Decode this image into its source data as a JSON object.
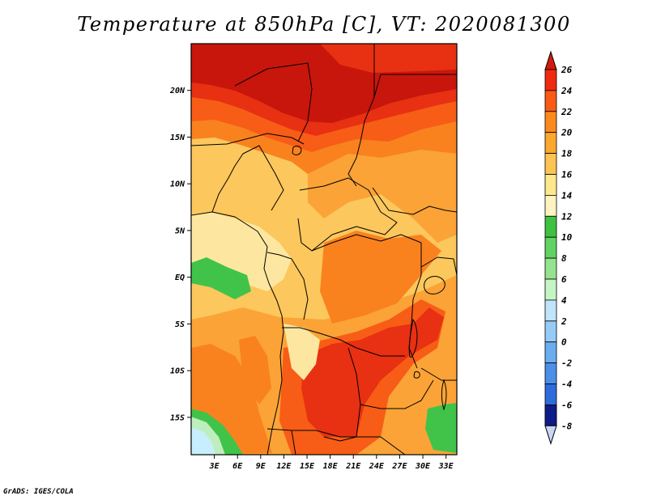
{
  "title": "Temperature at 850hPa [C], VT: 2020081300",
  "credit": "GrADS: IGES/COLA",
  "map": {
    "lat_labels": [
      "20N",
      "15N",
      "10N",
      "5N",
      "EQ",
      "5S",
      "10S",
      "15S"
    ],
    "lon_labels": [
      "3E",
      "6E",
      "9E",
      "12E",
      "15E",
      "18E",
      "21E",
      "24E",
      "27E",
      "30E",
      "33E"
    ],
    "lat_values": [
      20,
      15,
      10,
      5,
      0,
      -5,
      -10,
      -15
    ],
    "lon_values": [
      3,
      6,
      9,
      12,
      15,
      18,
      21,
      24,
      27,
      30,
      33
    ],
    "lat_range": [
      -19,
      25
    ],
    "lon_range": [
      0,
      34.4
    ]
  },
  "colorbar": {
    "levels": [
      "26",
      "24",
      "22",
      "20",
      "18",
      "16",
      "14",
      "12",
      "10",
      "8",
      "6",
      "4",
      "2",
      "0",
      "-2",
      "-4",
      "-6",
      "-8"
    ],
    "colors": [
      "#ef2a10",
      "#f95a14",
      "#fb8a1e",
      "#fba82e",
      "#fcc452",
      "#fde88c",
      "#fff3c0",
      "#3fc242",
      "#62d362",
      "#96e38f",
      "#c6f5c5",
      "#bfe4fb",
      "#96cbf7",
      "#6aaef0",
      "#4b8fe8",
      "#2f6cdb",
      "#1c49c3",
      "#112ea6"
    ],
    "top_color": "#d31b0b",
    "bottom_color": "#c8d7f5",
    "below_min_color": "#0d1c87"
  },
  "palette": {
    "t26": "#c8160c",
    "t24": "#e83012",
    "t22": "#f75d16",
    "t20": "#f9821f",
    "t18": "#fba337",
    "t16": "#fcc75c",
    "t14": "#fde7a0",
    "t12": "#41c34a",
    "t10": "#7bd77a",
    "t8": "#bfeebe",
    "t6": "#c6eefc"
  }
}
